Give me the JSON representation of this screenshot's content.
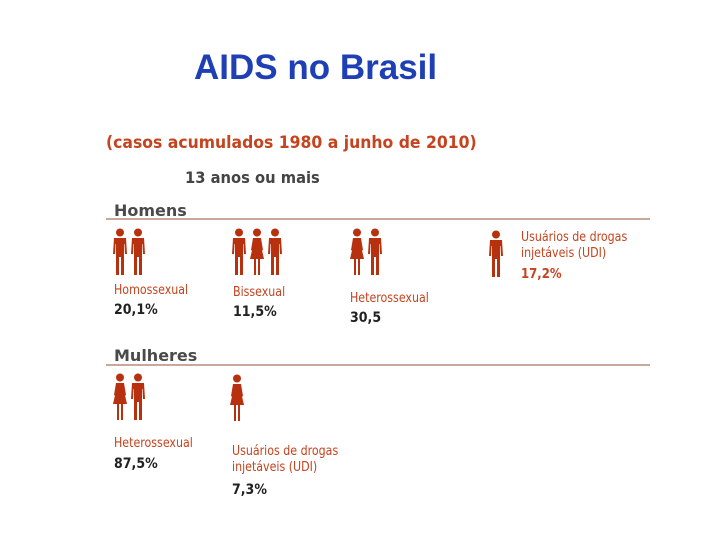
{
  "title": "AIDS no Brasil",
  "chart_data": {
    "type": "table",
    "subtitle": "(casos acumulados 1980 a junho de 2010)",
    "age_group": "13 anos ou mais",
    "sections": [
      {
        "name": "Homens",
        "categories": [
          {
            "label": "Homossexual",
            "value_text": "20,1%",
            "value": 20.1,
            "figures": [
              "man",
              "man"
            ]
          },
          {
            "label": "Bissexual",
            "value_text": "11,5%",
            "value": 11.5,
            "figures": [
              "man",
              "woman",
              "man"
            ]
          },
          {
            "label": "Heterossexual",
            "value_text": "30,5",
            "value": 30.5,
            "figures": [
              "woman",
              "man"
            ]
          },
          {
            "label": "Usuários de drogas injetáveis (UDI)",
            "label_lines": [
              "Usuários de drogas",
              "injetáveis (UDI)"
            ],
            "value_text": "17,2%",
            "value": 17.2,
            "figures": [
              "man"
            ]
          }
        ]
      },
      {
        "name": "Mulheres",
        "categories": [
          {
            "label": "Heterossexual",
            "value_text": "87,5%",
            "value": 87.5,
            "figures": [
              "woman",
              "man"
            ]
          },
          {
            "label": "Usuários de drogas injetáveis (UDI)",
            "label_lines": [
              "Usuários de drogas",
              "injetáveis (UDI)"
            ],
            "value_text": "7,3%",
            "value": 7.3,
            "figures": [
              "woman"
            ]
          }
        ]
      }
    ]
  },
  "colors": {
    "title": "#1f3fb5",
    "accent": "#c5431e",
    "figure": "#b8310f",
    "rule": "#c9a79b"
  }
}
